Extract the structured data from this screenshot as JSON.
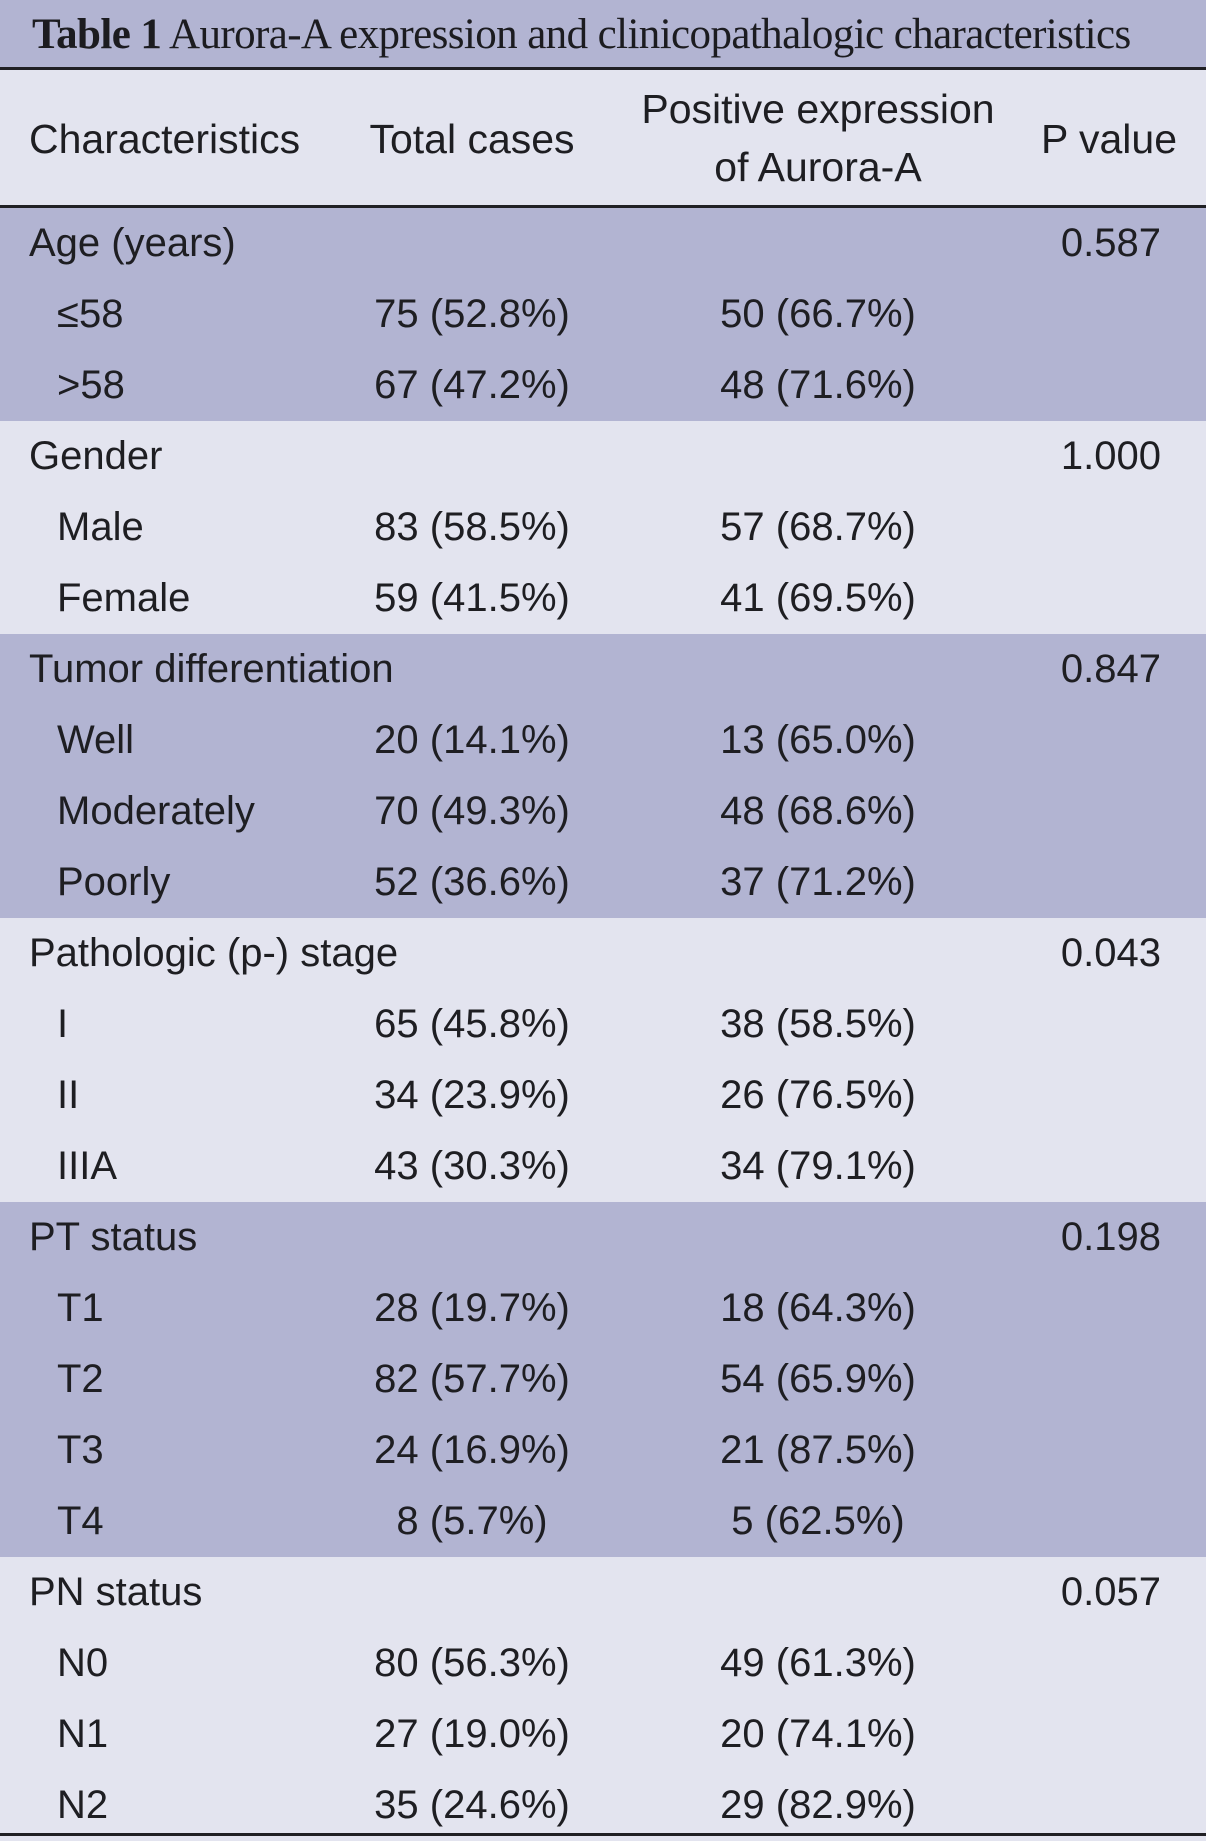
{
  "table": {
    "title_label": "Table 1",
    "title_text": "Aurora-A expression and clinicopathalogic characteristics",
    "headers": {
      "characteristics": "Characteristics",
      "total": "Total cases",
      "positive_line1": "Positive expression",
      "positive_line2": "of Aurora-A",
      "p": "P value"
    },
    "sections": [
      {
        "label": "Age (years)",
        "p": "0.587",
        "rows": [
          {
            "label": "≤58",
            "total": "75 (52.8%)",
            "positive": "50 (66.7%)"
          },
          {
            "label": ">58",
            "total": "67 (47.2%)",
            "positive": "48 (71.6%)"
          }
        ]
      },
      {
        "label": "Gender",
        "p": "1.000",
        "rows": [
          {
            "label": "Male",
            "total": "83 (58.5%)",
            "positive": "57 (68.7%)"
          },
          {
            "label": "Female",
            "total": "59 (41.5%)",
            "positive": "41 (69.5%)"
          }
        ]
      },
      {
        "label": "Tumor differentiation",
        "p": "0.847",
        "rows": [
          {
            "label": "Well",
            "total": "20 (14.1%)",
            "positive": "13 (65.0%)"
          },
          {
            "label": "Moderately",
            "total": "70 (49.3%)",
            "positive": "48 (68.6%)"
          },
          {
            "label": "Poorly",
            "total": "52 (36.6%)",
            "positive": "37 (71.2%)"
          }
        ]
      },
      {
        "label": "Pathologic (p-) stage",
        "p": "0.043",
        "rows": [
          {
            "label": "I",
            "total": "65 (45.8%)",
            "positive": "38 (58.5%)"
          },
          {
            "label": "II",
            "total": "34 (23.9%)",
            "positive": "26 (76.5%)"
          },
          {
            "label": "IIIA",
            "total": "43 (30.3%)",
            "positive": "34 (79.1%)"
          }
        ]
      },
      {
        "label": "PT status",
        "p": "0.198",
        "rows": [
          {
            "label": "T1",
            "total": "28 (19.7%)",
            "positive": "18 (64.3%)"
          },
          {
            "label": "T2",
            "total": "82 (57.7%)",
            "positive": "54 (65.9%)"
          },
          {
            "label": "T3",
            "total": "24 (16.9%)",
            "positive": "21 (87.5%)"
          },
          {
            "label": "T4",
            "total": "8 (5.7%)",
            "positive": "5 (62.5%)"
          }
        ]
      },
      {
        "label": "PN status",
        "p": "0.057",
        "rows": [
          {
            "label": "N0",
            "total": "80 (56.3%)",
            "positive": "49 (61.3%)"
          },
          {
            "label": "N1",
            "total": "27 (19.0%)",
            "positive": "20 (74.1%)"
          },
          {
            "label": "N2",
            "total": "35 (24.6%)",
            "positive": "29 (82.9%)"
          }
        ]
      }
    ]
  },
  "colors": {
    "shaded_band": "#b2b4d2",
    "light_band": "#e3e4ef",
    "rule": "#202024",
    "text": "#1e1e22"
  }
}
